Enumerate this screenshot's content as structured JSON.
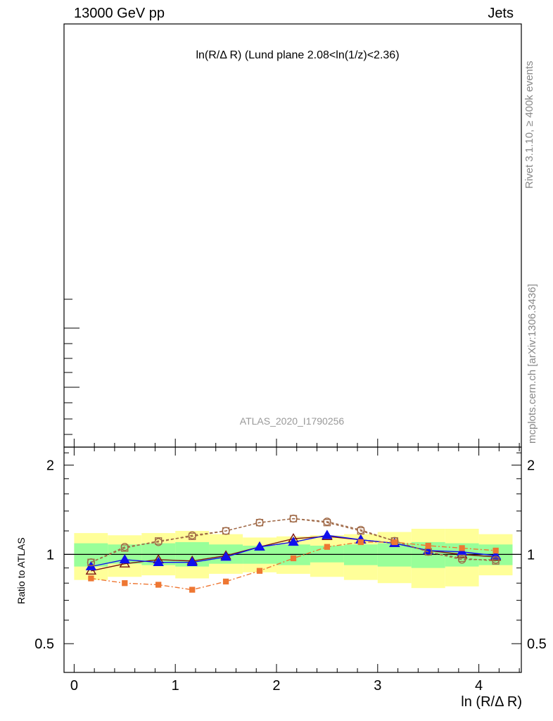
{
  "header": {
    "energy_label": "13000 GeV pp",
    "process_label": "Jets"
  },
  "side_labels": {
    "rivet": "Rivet 3.1.10, ≥ 400k events",
    "source": "mcplots.cern.ch [arXiv:1306.3436]"
  },
  "chart_data": {
    "type": "line",
    "title": "ln(R/Δ R) (Lund plane 2.08<ln(1/z)<2.36)",
    "watermark": "ATLAS_2020_I1790256",
    "xlabel": "ln (R/Δ R)",
    "ylabel": "Ratio to ATLAS",
    "xlim": [
      -0.1,
      4.42
    ],
    "ylim": [
      0.4,
      2.3
    ],
    "y_scale": "log",
    "x_ticks": [
      "0",
      "1",
      "2",
      "3",
      "4"
    ],
    "y_ticks": [
      {
        "value": 0.5,
        "label": "0.5"
      },
      {
        "value": 1,
        "label": "1"
      },
      {
        "value": 2,
        "label": "2"
      }
    ],
    "reference_line": 1,
    "bands": {
      "bin_edges": [
        0,
        0.333,
        0.667,
        1.0,
        1.333,
        1.667,
        2.0,
        2.333,
        2.667,
        3.0,
        3.333,
        3.667,
        4.0,
        4.333
      ],
      "inner": {
        "color": "#99ff99",
        "lower": [
          0.91,
          0.93,
          0.92,
          0.91,
          0.93,
          0.93,
          0.92,
          0.94,
          0.92,
          0.91,
          0.9,
          0.91,
          0.92
        ],
        "upper": [
          1.09,
          1.08,
          1.09,
          1.1,
          1.08,
          1.07,
          1.08,
          1.07,
          1.08,
          1.09,
          1.1,
          1.09,
          1.08
        ]
      },
      "outer": {
        "color": "#ffff99",
        "lower": [
          0.82,
          0.84,
          0.85,
          0.83,
          0.86,
          0.87,
          0.86,
          0.84,
          0.82,
          0.8,
          0.77,
          0.78,
          0.85
        ],
        "upper": [
          1.18,
          1.16,
          1.18,
          1.2,
          1.17,
          1.14,
          1.15,
          1.16,
          1.17,
          1.19,
          1.22,
          1.22,
          1.17
        ]
      }
    },
    "x": [
      0.167,
      0.5,
      0.833,
      1.167,
      1.5,
      1.833,
      2.167,
      2.5,
      2.833,
      3.167,
      3.5,
      3.833,
      4.167
    ],
    "series": [
      {
        "color": "#7b1010",
        "marker": "triangle-open",
        "dash": "",
        "values": [
          0.88,
          0.93,
          0.96,
          0.95,
          0.99,
          1.06,
          1.13,
          1.15,
          1.12,
          1.09,
          1.03,
          1.0,
          0.98
        ]
      },
      {
        "color": "#1010ee",
        "marker": "triangle-filled",
        "dash": "",
        "values": [
          0.91,
          0.96,
          0.94,
          0.94,
          0.98,
          1.06,
          1.1,
          1.16,
          1.12,
          1.09,
          1.03,
          1.02,
          0.99
        ]
      },
      {
        "color": "#a06a48",
        "marker": "square-open",
        "dash": "4,3",
        "values": [
          0.94,
          1.05,
          1.11,
          1.15,
          1.2,
          1.28,
          1.32,
          1.28,
          1.2,
          1.11,
          1.02,
          0.97,
          0.95
        ]
      },
      {
        "color": "#a06a48",
        "marker": "circle-open",
        "dash": "4,3",
        "values": [
          0.94,
          1.06,
          1.1,
          1.16,
          1.2,
          1.28,
          1.32,
          1.29,
          1.21,
          1.11,
          1.02,
          0.96,
          0.96
        ]
      },
      {
        "color": "#ee7733",
        "marker": "square-filled",
        "dash": "7,3,2,3",
        "values": [
          0.83,
          0.8,
          0.79,
          0.76,
          0.81,
          0.88,
          0.97,
          1.06,
          1.1,
          1.1,
          1.07,
          1.05,
          1.03
        ]
      }
    ]
  }
}
